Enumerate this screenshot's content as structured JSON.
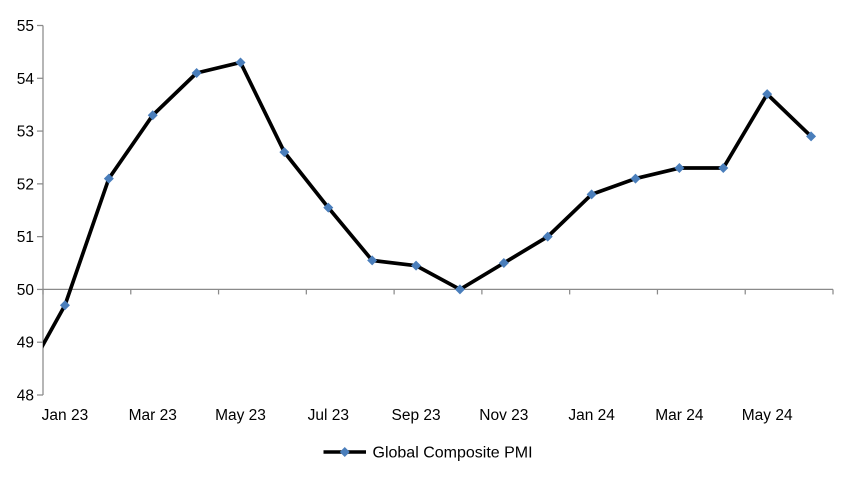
{
  "chart_data": {
    "type": "line",
    "title": "",
    "xlabel": "",
    "ylabel": "",
    "categories": [
      "Dec 22",
      "Jan 23",
      "Feb 23",
      "Mar 23",
      "Apr 23",
      "May 23",
      "Jun 23",
      "Jul 23",
      "Aug 23",
      "Sep 23",
      "Oct 23",
      "Nov 23",
      "Dec 23",
      "Jan 24",
      "Feb 24",
      "Mar 24",
      "Apr 24",
      "May 24",
      "Jun 24"
    ],
    "series": [
      {
        "name": "Global Composite PMI",
        "values": [
          48.2,
          49.7,
          52.1,
          53.3,
          54.1,
          54.3,
          52.6,
          51.55,
          50.55,
          50.45,
          50.0,
          50.5,
          51.0,
          51.8,
          52.1,
          52.3,
          52.3,
          53.7,
          52.9
        ],
        "marker_shape": "diamond"
      }
    ],
    "first_category_clipped": true,
    "ylim": [
      48,
      55
    ],
    "y_tick_interval": 1,
    "y_tick_labels": [
      "55",
      "54",
      "53",
      "52",
      "51",
      "50",
      "49",
      "48"
    ],
    "x_tick_labels": [
      "Jan 23",
      "Mar 23",
      "May 23",
      "Jul 23",
      "Sep 23",
      "Nov 23",
      "Jan 24",
      "Mar 24",
      "May 24"
    ],
    "x_label_interval": 2,
    "x_axis_crosses_at": 50,
    "grid": false,
    "legend_position": "bottom",
    "colors": {
      "line": "#000000",
      "marker": "#4a7ebb",
      "axis": "#8a8a8a",
      "text": "#000000",
      "background": "#ffffff"
    }
  }
}
